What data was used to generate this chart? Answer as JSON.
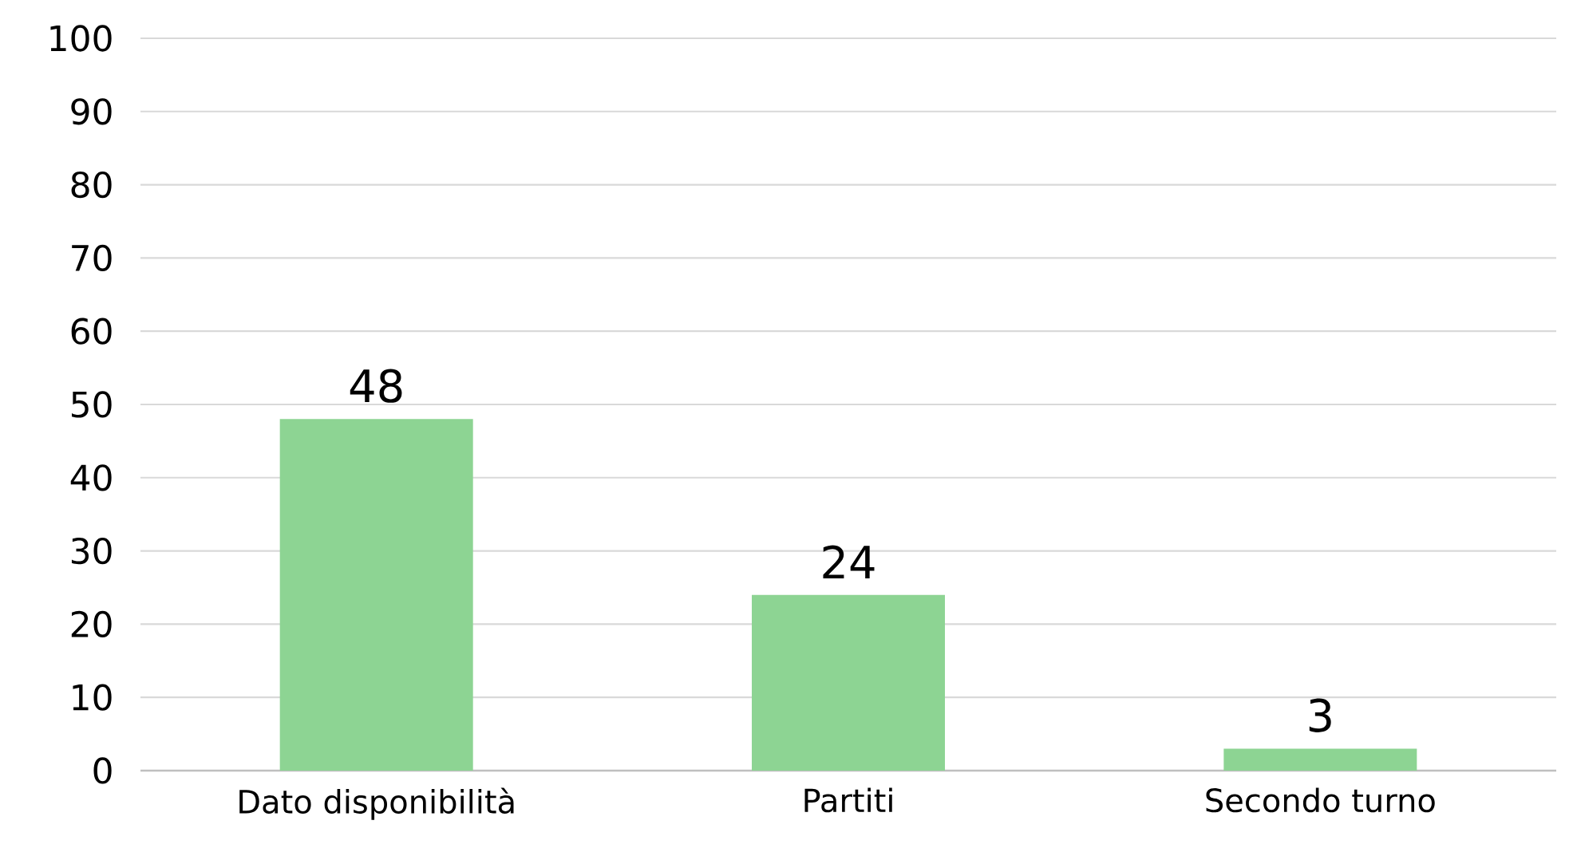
{
  "chart_data": {
    "type": "bar",
    "categories": [
      "Dato disponibilità",
      "Partiti",
      "Secondo turno"
    ],
    "values": [
      48,
      24,
      3
    ],
    "color": "#8dd493",
    "ylim": [
      0,
      100
    ],
    "yticks": [
      0,
      10,
      20,
      30,
      40,
      50,
      60,
      70,
      80,
      90,
      100
    ],
    "grid": "y",
    "data_labels": true
  }
}
